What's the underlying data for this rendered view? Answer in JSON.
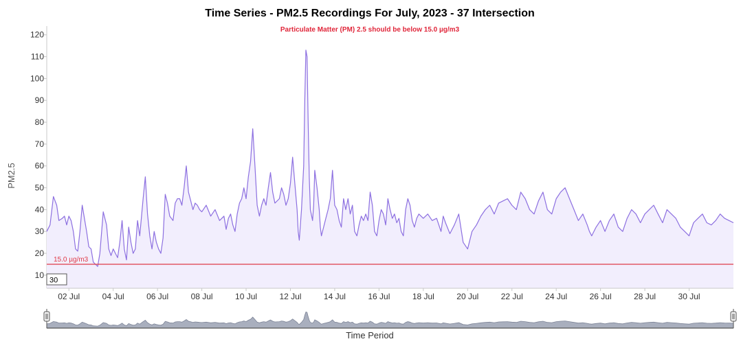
{
  "chart_data": {
    "type": "area",
    "title": "Time Series - PM2.5 Recordings For July, 2023 - 37 Intersection",
    "subtitle": "Particulate Matter (PM) 2.5 should be below 15.0 µg/m3",
    "ylabel": "PM2.5",
    "xlabel": "Time Period",
    "ylim": [
      4,
      124
    ],
    "yticks": [
      10,
      20,
      30,
      40,
      50,
      60,
      70,
      80,
      90,
      100,
      110,
      120
    ],
    "xlim": [
      1.0,
      32.0
    ],
    "xticks": [
      {
        "day": 2,
        "label": "02 Jul"
      },
      {
        "day": 4,
        "label": "04 Jul"
      },
      {
        "day": 6,
        "label": "06 Jul"
      },
      {
        "day": 8,
        "label": "08 Jul"
      },
      {
        "day": 10,
        "label": "10 Jul"
      },
      {
        "day": 12,
        "label": "12 Jul"
      },
      {
        "day": 14,
        "label": "14 Jul"
      },
      {
        "day": 16,
        "label": "16 Jul"
      },
      {
        "day": 18,
        "label": "18 Jul"
      },
      {
        "day": 20,
        "label": "20 Jul"
      },
      {
        "day": 22,
        "label": "22 Jul"
      },
      {
        "day": 24,
        "label": "24 Jul"
      },
      {
        "day": 26,
        "label": "26 Jul"
      },
      {
        "day": 28,
        "label": "28 Jul"
      },
      {
        "day": 30,
        "label": "30 Jul"
      }
    ],
    "threshold": {
      "value": 15.0,
      "label": "15.0 µg/m3",
      "color": "#e03a47"
    },
    "range_selector_value": "30",
    "series": [
      {
        "color": "#8c6fe0",
        "fill": "#f2eefd",
        "points": [
          [
            1.0,
            30
          ],
          [
            1.15,
            33
          ],
          [
            1.3,
            46
          ],
          [
            1.45,
            42
          ],
          [
            1.55,
            35
          ],
          [
            1.7,
            36
          ],
          [
            1.8,
            37
          ],
          [
            1.9,
            33
          ],
          [
            2.0,
            37
          ],
          [
            2.1,
            35
          ],
          [
            2.2,
            30
          ],
          [
            2.3,
            22
          ],
          [
            2.4,
            21
          ],
          [
            2.5,
            30
          ],
          [
            2.6,
            42
          ],
          [
            2.7,
            36
          ],
          [
            2.8,
            30
          ],
          [
            2.9,
            23
          ],
          [
            3.0,
            22
          ],
          [
            3.1,
            16
          ],
          [
            3.2,
            15
          ],
          [
            3.3,
            14
          ],
          [
            3.4,
            20
          ],
          [
            3.55,
            39
          ],
          [
            3.7,
            33
          ],
          [
            3.8,
            22
          ],
          [
            3.9,
            19
          ],
          [
            4.0,
            22
          ],
          [
            4.1,
            20
          ],
          [
            4.2,
            18
          ],
          [
            4.3,
            25
          ],
          [
            4.4,
            35
          ],
          [
            4.5,
            22
          ],
          [
            4.6,
            17
          ],
          [
            4.7,
            32
          ],
          [
            4.8,
            25
          ],
          [
            4.9,
            20
          ],
          [
            5.0,
            22
          ],
          [
            5.1,
            35
          ],
          [
            5.2,
            28
          ],
          [
            5.35,
            45
          ],
          [
            5.45,
            55
          ],
          [
            5.55,
            38
          ],
          [
            5.65,
            28
          ],
          [
            5.75,
            22
          ],
          [
            5.85,
            30
          ],
          [
            5.95,
            25
          ],
          [
            6.05,
            22
          ],
          [
            6.15,
            20
          ],
          [
            6.25,
            27
          ],
          [
            6.35,
            47
          ],
          [
            6.45,
            43
          ],
          [
            6.55,
            37
          ],
          [
            6.7,
            35
          ],
          [
            6.8,
            43
          ],
          [
            6.9,
            45
          ],
          [
            7.0,
            45
          ],
          [
            7.1,
            42
          ],
          [
            7.2,
            50
          ],
          [
            7.3,
            60
          ],
          [
            7.4,
            48
          ],
          [
            7.5,
            44
          ],
          [
            7.6,
            40
          ],
          [
            7.7,
            43
          ],
          [
            7.8,
            42
          ],
          [
            7.9,
            40
          ],
          [
            8.0,
            39
          ],
          [
            8.2,
            42
          ],
          [
            8.4,
            37
          ],
          [
            8.6,
            40
          ],
          [
            8.8,
            35
          ],
          [
            9.0,
            37
          ],
          [
            9.1,
            31
          ],
          [
            9.2,
            36
          ],
          [
            9.3,
            38
          ],
          [
            9.4,
            33
          ],
          [
            9.5,
            30
          ],
          [
            9.6,
            38
          ],
          [
            9.7,
            43
          ],
          [
            9.8,
            45
          ],
          [
            9.9,
            50
          ],
          [
            10.0,
            45
          ],
          [
            10.1,
            55
          ],
          [
            10.2,
            62
          ],
          [
            10.3,
            77
          ],
          [
            10.4,
            60
          ],
          [
            10.5,
            42
          ],
          [
            10.6,
            37
          ],
          [
            10.7,
            42
          ],
          [
            10.8,
            45
          ],
          [
            10.9,
            42
          ],
          [
            11.0,
            50
          ],
          [
            11.1,
            57
          ],
          [
            11.2,
            48
          ],
          [
            11.3,
            43
          ],
          [
            11.5,
            45
          ],
          [
            11.6,
            50
          ],
          [
            11.7,
            47
          ],
          [
            11.8,
            42
          ],
          [
            11.9,
            45
          ],
          [
            12.0,
            52
          ],
          [
            12.1,
            64
          ],
          [
            12.2,
            52
          ],
          [
            12.3,
            40
          ],
          [
            12.35,
            30
          ],
          [
            12.4,
            26
          ],
          [
            12.5,
            40
          ],
          [
            12.6,
            60
          ],
          [
            12.65,
            90
          ],
          [
            12.7,
            113
          ],
          [
            12.75,
            110
          ],
          [
            12.8,
            80
          ],
          [
            12.85,
            55
          ],
          [
            12.9,
            40
          ],
          [
            13.0,
            35
          ],
          [
            13.05,
            42
          ],
          [
            13.1,
            58
          ],
          [
            13.2,
            50
          ],
          [
            13.3,
            40
          ],
          [
            13.35,
            32
          ],
          [
            13.4,
            28
          ],
          [
            13.5,
            32
          ],
          [
            13.6,
            36
          ],
          [
            13.7,
            40
          ],
          [
            13.8,
            45
          ],
          [
            13.9,
            58
          ],
          [
            14.0,
            42
          ],
          [
            14.1,
            40
          ],
          [
            14.2,
            35
          ],
          [
            14.3,
            32
          ],
          [
            14.4,
            45
          ],
          [
            14.5,
            40
          ],
          [
            14.6,
            45
          ],
          [
            14.7,
            38
          ],
          [
            14.8,
            42
          ],
          [
            14.9,
            30
          ],
          [
            15.0,
            28
          ],
          [
            15.1,
            33
          ],
          [
            15.2,
            37
          ],
          [
            15.3,
            35
          ],
          [
            15.4,
            38
          ],
          [
            15.5,
            35
          ],
          [
            15.6,
            48
          ],
          [
            15.7,
            42
          ],
          [
            15.8,
            30
          ],
          [
            15.9,
            28
          ],
          [
            16.0,
            35
          ],
          [
            16.1,
            40
          ],
          [
            16.2,
            38
          ],
          [
            16.3,
            33
          ],
          [
            16.4,
            45
          ],
          [
            16.5,
            40
          ],
          [
            16.6,
            36
          ],
          [
            16.7,
            38
          ],
          [
            16.8,
            34
          ],
          [
            16.9,
            36
          ],
          [
            17.0,
            30
          ],
          [
            17.1,
            28
          ],
          [
            17.2,
            40
          ],
          [
            17.3,
            45
          ],
          [
            17.4,
            42
          ],
          [
            17.5,
            35
          ],
          [
            17.6,
            32
          ],
          [
            17.7,
            36
          ],
          [
            17.8,
            38
          ],
          [
            18.0,
            36
          ],
          [
            18.2,
            38
          ],
          [
            18.4,
            35
          ],
          [
            18.6,
            36
          ],
          [
            18.8,
            30
          ],
          [
            18.9,
            37
          ],
          [
            19.0,
            34
          ],
          [
            19.2,
            29
          ],
          [
            19.4,
            33
          ],
          [
            19.6,
            38
          ],
          [
            19.8,
            25
          ],
          [
            20.0,
            22
          ],
          [
            20.2,
            30
          ],
          [
            20.4,
            33
          ],
          [
            20.6,
            37
          ],
          [
            20.8,
            40
          ],
          [
            21.0,
            42
          ],
          [
            21.2,
            38
          ],
          [
            21.4,
            43
          ],
          [
            21.6,
            44
          ],
          [
            21.8,
            45
          ],
          [
            22.0,
            42
          ],
          [
            22.2,
            40
          ],
          [
            22.4,
            48
          ],
          [
            22.6,
            45
          ],
          [
            22.8,
            40
          ],
          [
            23.0,
            38
          ],
          [
            23.2,
            44
          ],
          [
            23.4,
            48
          ],
          [
            23.6,
            40
          ],
          [
            23.8,
            38
          ],
          [
            24.0,
            45
          ],
          [
            24.2,
            48
          ],
          [
            24.4,
            50
          ],
          [
            24.6,
            45
          ],
          [
            24.8,
            40
          ],
          [
            25.0,
            35
          ],
          [
            25.2,
            38
          ],
          [
            25.4,
            33
          ],
          [
            25.5,
            30
          ],
          [
            25.6,
            28
          ],
          [
            25.8,
            32
          ],
          [
            26.0,
            35
          ],
          [
            26.2,
            30
          ],
          [
            26.4,
            35
          ],
          [
            26.6,
            38
          ],
          [
            26.8,
            32
          ],
          [
            27.0,
            30
          ],
          [
            27.2,
            36
          ],
          [
            27.4,
            40
          ],
          [
            27.6,
            38
          ],
          [
            27.8,
            34
          ],
          [
            28.0,
            38
          ],
          [
            28.2,
            40
          ],
          [
            28.4,
            42
          ],
          [
            28.6,
            38
          ],
          [
            28.8,
            34
          ],
          [
            29.0,
            40
          ],
          [
            29.2,
            38
          ],
          [
            29.4,
            36
          ],
          [
            29.6,
            32
          ],
          [
            29.8,
            30
          ],
          [
            30.0,
            28
          ],
          [
            30.2,
            34
          ],
          [
            30.4,
            36
          ],
          [
            30.6,
            38
          ],
          [
            30.8,
            34
          ],
          [
            31.0,
            33
          ],
          [
            31.2,
            35
          ],
          [
            31.4,
            38
          ],
          [
            31.6,
            36
          ],
          [
            31.8,
            35
          ],
          [
            32.0,
            34
          ]
        ]
      }
    ]
  }
}
